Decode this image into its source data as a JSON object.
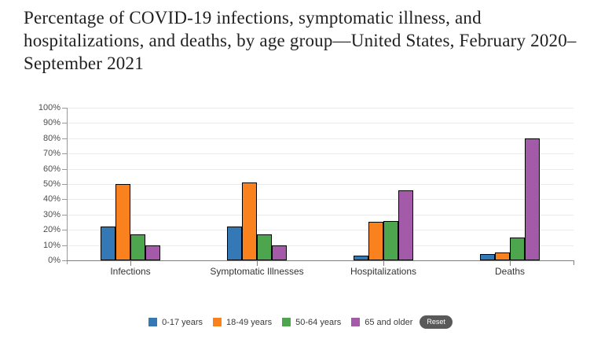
{
  "title": "Percentage of COVID-19 infections, symptomatic illness, and hospitalizations, and deaths, by age group—United States, February 2020–September 2021",
  "chart_data": {
    "type": "bar",
    "title": "Percentage of COVID-19 infections, symptomatic illness, and hospitalizations, and deaths, by age group—United States, February 2020–September 2021",
    "categories": [
      "Infections",
      "Symptomatic Illnesses",
      "Hospitalizations",
      "Deaths"
    ],
    "series": [
      {
        "name": "0-17 years",
        "color": "#3478B6",
        "values": [
          22,
          22,
          3,
          4
        ]
      },
      {
        "name": "18-49 years",
        "color": "#F9821E",
        "values": [
          50,
          51,
          25,
          5
        ]
      },
      {
        "name": "50-64 years",
        "color": "#4DA64D",
        "values": [
          17,
          17,
          26,
          15
        ]
      },
      {
        "name": "65 and older",
        "color": "#A35AA8",
        "values": [
          10,
          10,
          46,
          80
        ]
      }
    ],
    "xlabel": "",
    "ylabel": "",
    "ylim": [
      0,
      100
    ],
    "ytick_step": 10,
    "ytick_suffix": "%",
    "yticks": [
      "0%",
      "10%",
      "20%",
      "30%",
      "40%",
      "50%",
      "60%",
      "70%",
      "80%",
      "90%",
      "100%"
    ],
    "grid": true,
    "legend_position": "bottom"
  },
  "legend": {
    "reset_label": "Reset"
  },
  "colors": {
    "background": "#ffffff",
    "gridline": "#ebebeb",
    "y_axis": "#999999",
    "x_axis": "#7f7f7f",
    "bar_border": "#000000",
    "title_text": "#212121",
    "axis_label_text": "#4d4d4d",
    "reset_background": "#595959",
    "reset_text": "#ffffff"
  }
}
